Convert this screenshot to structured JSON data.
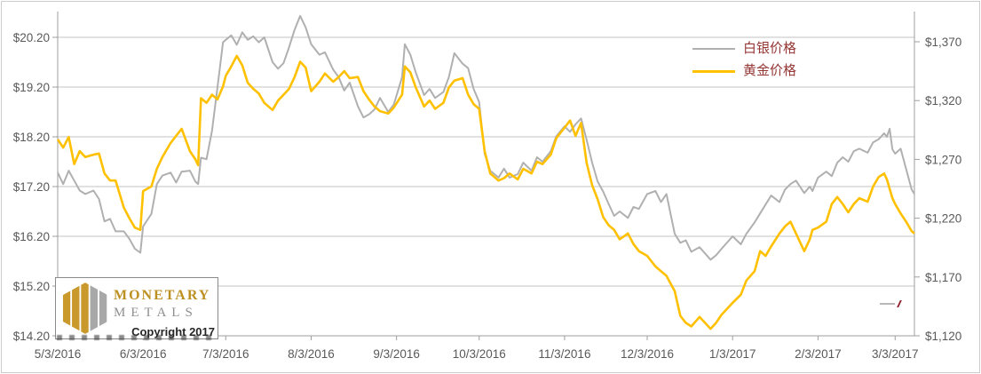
{
  "watermark": {
    "brand_line1": "MONETARY",
    "brand_line2": "METALS",
    "copyright": "Copyright 2017",
    "icon": "hexagon-bars-logo-icon",
    "gold_bar_color": "#c9992b",
    "gray_bar_color": "#a8a8a8"
  },
  "legend": {
    "position": "top-right-inside",
    "items": [
      {
        "label": "白银价格",
        "color": "#b0b0b0",
        "series": "silver"
      },
      {
        "label": "黄金价格",
        "color": "#ffc000",
        "series": "gold"
      }
    ]
  },
  "chart_data": {
    "type": "line",
    "title": "",
    "xlabel": "",
    "grid": "horizontal-on",
    "colors": {
      "silver_line": "#b0b0b0",
      "gold_line": "#ffc000",
      "gridline": "#c3c3c3",
      "axis_line": "#9e9e9e",
      "tick_text": "#595959"
    },
    "left_axis": {
      "title": "",
      "unit": "USD per oz silver",
      "tick_labels": [
        "$20.20",
        "$19.20",
        "$18.20",
        "$17.20",
        "$16.20",
        "$15.20",
        "$14.20"
      ],
      "tick_values": [
        20.2,
        19.2,
        18.2,
        17.2,
        16.2,
        15.2,
        14.2
      ],
      "min": 14.2,
      "max": 20.2
    },
    "right_axis": {
      "title": "",
      "unit": "USD per oz gold",
      "tick_labels": [
        "$1,370",
        "$1,320",
        "$1,270",
        "$1,220",
        "$1,170",
        "$1,120"
      ],
      "tick_values": [
        1370,
        1320,
        1270,
        1220,
        1170,
        1120
      ],
      "min": 1120,
      "max": 1370
    },
    "x_axis": {
      "tick_labels": [
        "5/3/2016",
        "6/3/2016",
        "7/3/2016",
        "8/3/2016",
        "9/3/2016",
        "10/3/2016",
        "11/3/2016",
        "12/3/2016",
        "1/3/2017",
        "2/3/2017",
        "3/3/2017"
      ],
      "tick_days": [
        0,
        31,
        61,
        92,
        123,
        153,
        184,
        214,
        245,
        276,
        304
      ],
      "domain_days": [
        0,
        311
      ],
      "start_date": "5/3/2016",
      "end_date": "3/10/2017"
    },
    "days": [
      0,
      2,
      4,
      6,
      8,
      10,
      13,
      15,
      17,
      19,
      21,
      24,
      26,
      28,
      30,
      31,
      34,
      36,
      38,
      41,
      43,
      45,
      48,
      50,
      51,
      52,
      54,
      56,
      58,
      60,
      61,
      63,
      65,
      67,
      69,
      71,
      73,
      75,
      78,
      80,
      82,
      84,
      86,
      88,
      90,
      92,
      95,
      97,
      100,
      102,
      104,
      106,
      109,
      111,
      113,
      115,
      117,
      120,
      122,
      125,
      126,
      128,
      130,
      133,
      135,
      137,
      140,
      142,
      144,
      147,
      149,
      151,
      153,
      155,
      157,
      160,
      162,
      164,
      167,
      169,
      172,
      174,
      176,
      179,
      181,
      184,
      186,
      188,
      190,
      192,
      194,
      196,
      198,
      200,
      202,
      204,
      207,
      209,
      211,
      214,
      217,
      219,
      221,
      224,
      226,
      228,
      230,
      233,
      237,
      239,
      241,
      245,
      248,
      250,
      253,
      255,
      257,
      259,
      262,
      264,
      266,
      268,
      271,
      273,
      274,
      276,
      279,
      281,
      283,
      285,
      287,
      289,
      291,
      294,
      296,
      298,
      300,
      301,
      302,
      303,
      304,
      306,
      308,
      310,
      311
    ],
    "series": [
      {
        "name": "白银价格",
        "axis": "left",
        "values": [
          17.48,
          17.25,
          17.52,
          17.32,
          17.12,
          17.05,
          17.12,
          16.95,
          16.5,
          16.55,
          16.3,
          16.3,
          16.15,
          15.95,
          15.87,
          16.4,
          16.65,
          17.25,
          17.42,
          17.48,
          17.28,
          17.5,
          17.52,
          17.3,
          17.25,
          17.78,
          17.75,
          18.32,
          19.2,
          20.1,
          20.15,
          20.24,
          20.05,
          20.3,
          20.15,
          20.22,
          20.1,
          20.2,
          19.7,
          19.57,
          19.68,
          20.0,
          20.35,
          20.63,
          20.4,
          20.06,
          19.85,
          19.9,
          19.55,
          19.4,
          19.13,
          19.29,
          18.81,
          18.59,
          18.65,
          18.75,
          18.98,
          18.7,
          18.85,
          19.4,
          20.06,
          19.85,
          19.49,
          19.04,
          19.16,
          18.98,
          19.1,
          19.4,
          19.88,
          19.67,
          19.58,
          19.16,
          18.9,
          17.86,
          17.52,
          17.38,
          17.56,
          17.38,
          17.45,
          17.68,
          17.52,
          17.79,
          17.7,
          17.91,
          18.21,
          18.41,
          18.3,
          18.45,
          18.57,
          18.14,
          17.68,
          17.3,
          17.1,
          16.85,
          16.61,
          16.7,
          16.57,
          16.79,
          16.75,
          17.05,
          17.11,
          16.89,
          17.05,
          16.25,
          16.07,
          16.12,
          15.89,
          15.98,
          15.73,
          15.82,
          15.95,
          16.2,
          16.04,
          16.25,
          16.48,
          16.66,
          16.84,
          17.02,
          16.89,
          17.14,
          17.25,
          17.32,
          17.07,
          17.2,
          17.11,
          17.38,
          17.5,
          17.41,
          17.68,
          17.79,
          17.7,
          17.91,
          17.96,
          17.88,
          18.09,
          18.15,
          18.27,
          18.2,
          18.36,
          17.95,
          17.86,
          17.96,
          17.55,
          17.14,
          17.05
        ]
      },
      {
        "name": "黄金价格",
        "axis": "right",
        "values": [
          1287,
          1280,
          1289,
          1266,
          1277,
          1272,
          1274,
          1275,
          1258,
          1252,
          1252,
          1229,
          1220,
          1212,
          1210,
          1243,
          1247,
          1262,
          1272,
          1284,
          1290,
          1296,
          1277,
          1270,
          1265,
          1322,
          1318,
          1325,
          1321,
          1332,
          1341,
          1349,
          1358,
          1350,
          1335,
          1330,
          1326,
          1318,
          1312,
          1320,
          1325,
          1330,
          1340,
          1353,
          1348,
          1328,
          1336,
          1343,
          1336,
          1340,
          1345,
          1339,
          1340,
          1328,
          1321,
          1315,
          1311,
          1309,
          1314,
          1325,
          1349,
          1344,
          1331,
          1315,
          1320,
          1313,
          1318,
          1331,
          1337,
          1339,
          1325,
          1317,
          1313,
          1277,
          1258,
          1252,
          1254,
          1258,
          1253,
          1262,
          1258,
          1268,
          1266,
          1274,
          1288,
          1297,
          1303,
          1290,
          1301,
          1267,
          1248,
          1236,
          1221,
          1214,
          1210,
          1202,
          1207,
          1198,
          1192,
          1188,
          1179,
          1175,
          1171,
          1158,
          1137,
          1131,
          1128,
          1136,
          1126,
          1131,
          1138,
          1148,
          1155,
          1167,
          1175,
          1192,
          1188,
          1196,
          1207,
          1213,
          1217,
          1207,
          1192,
          1202,
          1210,
          1212,
          1217,
          1232,
          1238,
          1232,
          1225,
          1232,
          1237,
          1234,
          1247,
          1255,
          1258,
          1253,
          1245,
          1237,
          1232,
          1224,
          1217,
          1209,
          1207
        ]
      }
    ]
  }
}
